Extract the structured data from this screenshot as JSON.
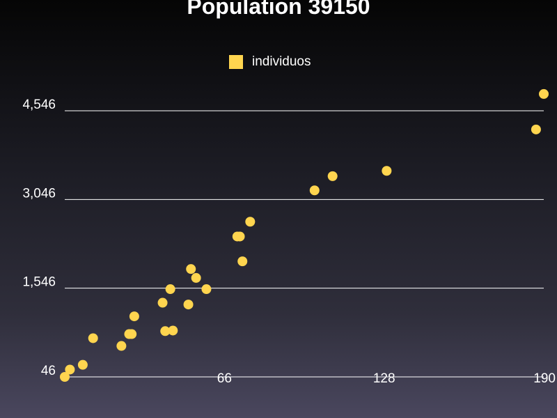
{
  "chart_data": {
    "type": "scatter",
    "title": "Population 39150",
    "xlabel": "",
    "ylabel": "",
    "xlim": [
      4,
      190
    ],
    "ylim": [
      46,
      4546
    ],
    "x_ticks": [
      {
        "value": 66,
        "label": "66"
      },
      {
        "value": 128,
        "label": "128"
      },
      {
        "value": 190,
        "label": "190"
      }
    ],
    "y_ticks": [
      {
        "value": 46,
        "label": "46"
      },
      {
        "value": 1546,
        "label": "1,546"
      },
      {
        "value": 3046,
        "label": "3,046"
      },
      {
        "value": 4546,
        "label": "4,546"
      }
    ],
    "grid": true,
    "legend_position": "top-center",
    "series": [
      {
        "name": "individuos",
        "color": "#ffd54f",
        "points": [
          {
            "x": 4,
            "y": 46
          },
          {
            "x": 6,
            "y": 170
          },
          {
            "x": 11,
            "y": 250
          },
          {
            "x": 15,
            "y": 700
          },
          {
            "x": 26,
            "y": 570
          },
          {
            "x": 29,
            "y": 770
          },
          {
            "x": 30,
            "y": 770
          },
          {
            "x": 31,
            "y": 1070
          },
          {
            "x": 42,
            "y": 1300
          },
          {
            "x": 43,
            "y": 820
          },
          {
            "x": 46,
            "y": 830
          },
          {
            "x": 45,
            "y": 1530
          },
          {
            "x": 52,
            "y": 1270
          },
          {
            "x": 53,
            "y": 1870
          },
          {
            "x": 55,
            "y": 1720
          },
          {
            "x": 59,
            "y": 1530
          },
          {
            "x": 71,
            "y": 2420
          },
          {
            "x": 72,
            "y": 2420
          },
          {
            "x": 73,
            "y": 2000
          },
          {
            "x": 76,
            "y": 2670
          },
          {
            "x": 101,
            "y": 3200
          },
          {
            "x": 108,
            "y": 3440
          },
          {
            "x": 129,
            "y": 3530
          },
          {
            "x": 187,
            "y": 4230
          },
          {
            "x": 190,
            "y": 4830
          }
        ]
      }
    ]
  }
}
